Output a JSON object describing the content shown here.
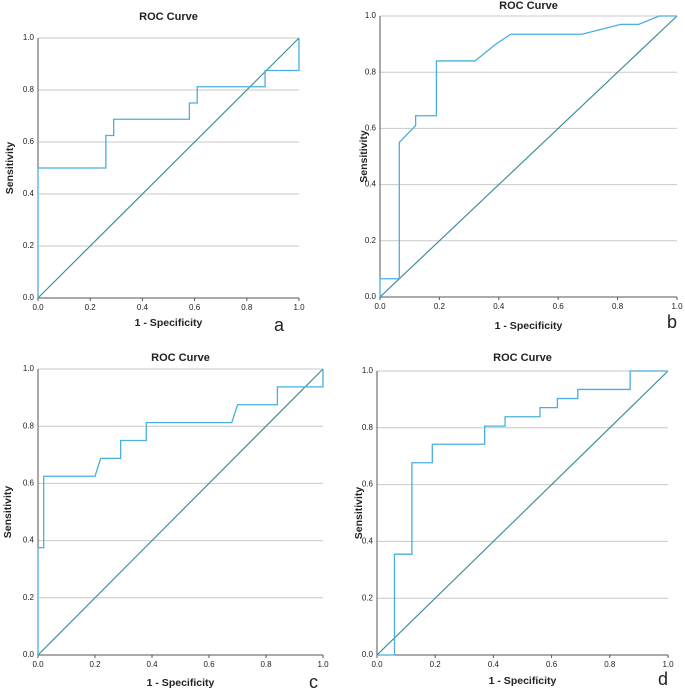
{
  "chart_data": [
    {
      "type": "line",
      "title": "ROC Curve",
      "x_label": "1 - Specificity",
      "y_label": "Sensitivity",
      "panel_label": "a",
      "color": "#4aaedf",
      "diagonal_color": "#3f8f9a",
      "grid": true,
      "xlim": [
        0,
        1
      ],
      "ylim": [
        0,
        1
      ],
      "xticks": [
        {
          "value": 0,
          "label": "0.0"
        },
        0.2,
        0.4,
        0.6,
        0.8,
        {
          "value": 1,
          "label": "1.0"
        }
      ],
      "yticks": [
        {
          "value": 0,
          "label": "0.0"
        },
        0.2,
        0.4,
        0.6,
        0.8,
        {
          "value": 1,
          "label": "1.0"
        }
      ],
      "x": [
        0,
        0,
        0.26,
        0.26,
        0.29,
        0.29,
        0.58,
        0.58,
        0.61,
        0.61,
        0.87,
        0.87,
        1,
        1
      ],
      "values": [
        0,
        0.5,
        0.5,
        0.625,
        0.625,
        0.6875,
        0.6875,
        0.75,
        0.75,
        0.8125,
        0.8125,
        0.875,
        0.875,
        1
      ]
    },
    {
      "type": "line",
      "title": "ROC Curve",
      "x_label": "1 - Specificity",
      "y_label": "Sensitivity",
      "panel_label": "b",
      "color": "#4aaedf",
      "diagonal_color": "#3f8f9a",
      "grid": true,
      "xlim": [
        0,
        1
      ],
      "ylim": [
        0,
        1
      ],
      "xticks": [
        {
          "value": 0,
          "label": "0.0"
        },
        0.2,
        0.4,
        0.6,
        0.8,
        {
          "value": 1,
          "label": "1.0"
        }
      ],
      "yticks": [
        {
          "value": 0,
          "label": "0.0"
        },
        0.2,
        0.4,
        0.6,
        0.8,
        {
          "value": 1,
          "label": "1.0"
        }
      ],
      "x": [
        0,
        0,
        0.065,
        0.065,
        0.12,
        0.12,
        0.19,
        0.19,
        0.32,
        0.39,
        0.44,
        0.68,
        0.81,
        0.87,
        0.94,
        1
      ],
      "values": [
        0,
        0.065,
        0.065,
        0.55,
        0.61,
        0.645,
        0.645,
        0.84,
        0.84,
        0.9,
        0.935,
        0.935,
        0.97,
        0.97,
        1,
        1
      ]
    },
    {
      "type": "line",
      "title": "ROC Curve",
      "x_label": "1 - Specificity",
      "y_label": "Sensitivity",
      "panel_label": "c",
      "color": "#4aaedf",
      "diagonal_color": "#3f8f9a",
      "grid": true,
      "xlim": [
        0,
        1
      ],
      "ylim": [
        0,
        1
      ],
      "xticks": [
        {
          "value": 0,
          "label": "0.0"
        },
        0.2,
        0.4,
        0.6,
        0.8,
        {
          "value": 1,
          "label": "1.0"
        }
      ],
      "yticks": [
        {
          "value": 0,
          "label": "0.0"
        },
        0.2,
        0.4,
        0.6,
        0.8,
        {
          "value": 1,
          "label": "1.0"
        }
      ],
      "x": [
        0,
        0,
        0.02,
        0.02,
        0.2,
        0.22,
        0.29,
        0.29,
        0.38,
        0.38,
        0.68,
        0.7,
        0.84,
        0.84,
        1,
        1
      ],
      "values": [
        0,
        0.375,
        0.375,
        0.625,
        0.625,
        0.6875,
        0.6875,
        0.75,
        0.75,
        0.8125,
        0.8125,
        0.875,
        0.875,
        0.9375,
        0.9375,
        1
      ]
    },
    {
      "type": "line",
      "title": "ROC Curve",
      "x_label": "1 - Specificity",
      "y_label": "Sensitivity",
      "panel_label": "d",
      "color": "#4aaedf",
      "diagonal_color": "#3f8f9a",
      "grid": true,
      "xlim": [
        0,
        1
      ],
      "ylim": [
        0,
        1
      ],
      "xticks": [
        {
          "value": 0,
          "label": "0.0"
        },
        0.2,
        0.4,
        0.6,
        0.8,
        {
          "value": 1,
          "label": "1.0"
        }
      ],
      "yticks": [
        {
          "value": 0,
          "label": "0.0"
        },
        0.2,
        0.4,
        0.6,
        0.8,
        {
          "value": 1,
          "label": "1.0"
        }
      ],
      "x": [
        0,
        0.06,
        0.06,
        0.12,
        0.12,
        0.19,
        0.19,
        0.37,
        0.37,
        0.44,
        0.44,
        0.56,
        0.56,
        0.62,
        0.62,
        0.69,
        0.69,
        0.87,
        0.87,
        1
      ],
      "values": [
        0,
        0,
        0.355,
        0.355,
        0.677,
        0.677,
        0.742,
        0.742,
        0.806,
        0.806,
        0.839,
        0.839,
        0.871,
        0.871,
        0.903,
        0.903,
        0.935,
        0.935,
        1,
        1
      ]
    }
  ]
}
